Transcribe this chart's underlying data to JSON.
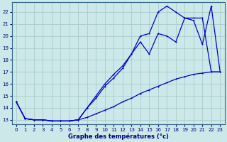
{
  "xlabel": "Graphe des températures (°c)",
  "bg_color": "#cce8e8",
  "grid_color": "#aacccc",
  "line_color": "#0000cc",
  "xlim": [
    -0.5,
    23.5
  ],
  "ylim": [
    12.6,
    22.8
  ],
  "yticks": [
    13,
    14,
    15,
    16,
    17,
    18,
    19,
    20,
    21,
    22
  ],
  "xticks": [
    0,
    1,
    2,
    3,
    4,
    5,
    6,
    7,
    8,
    9,
    10,
    11,
    12,
    13,
    14,
    15,
    16,
    17,
    18,
    19,
    20,
    21,
    22,
    23
  ],
  "series1_x": [
    0,
    1,
    2,
    3,
    4,
    5,
    6,
    7,
    8,
    9,
    10,
    11,
    12,
    13,
    14,
    15,
    16,
    17,
    18,
    19,
    20,
    21,
    22,
    23
  ],
  "series1_y": [
    14.5,
    13.1,
    13.0,
    13.0,
    12.9,
    12.9,
    12.9,
    13.0,
    13.2,
    13.5,
    13.8,
    14.1,
    14.5,
    14.8,
    15.2,
    15.5,
    15.8,
    16.1,
    16.4,
    16.6,
    16.8,
    16.9,
    17.0,
    17.0
  ],
  "series2_x": [
    0,
    1,
    2,
    3,
    4,
    5,
    6,
    7,
    8,
    9,
    10,
    11,
    12,
    13,
    14,
    15,
    16,
    17,
    18,
    19,
    20,
    21,
    22,
    23
  ],
  "series2_y": [
    14.5,
    13.1,
    13.0,
    13.0,
    12.9,
    12.9,
    12.9,
    13.0,
    14.0,
    15.0,
    16.0,
    16.8,
    17.5,
    18.5,
    19.5,
    18.5,
    20.2,
    20.0,
    19.5,
    21.5,
    21.5,
    21.5,
    17.0,
    17.0
  ],
  "series3_x": [
    0,
    1,
    2,
    3,
    4,
    5,
    6,
    7,
    8,
    9,
    10,
    11,
    12,
    13,
    14,
    15,
    16,
    17,
    18,
    19,
    20,
    21,
    22,
    23
  ],
  "series3_y": [
    14.5,
    13.1,
    13.0,
    13.0,
    12.9,
    12.9,
    12.9,
    13.0,
    14.0,
    14.8,
    15.8,
    16.5,
    17.3,
    18.5,
    20.0,
    20.2,
    22.0,
    22.5,
    22.0,
    21.5,
    21.3,
    19.3,
    22.5,
    17.0
  ]
}
